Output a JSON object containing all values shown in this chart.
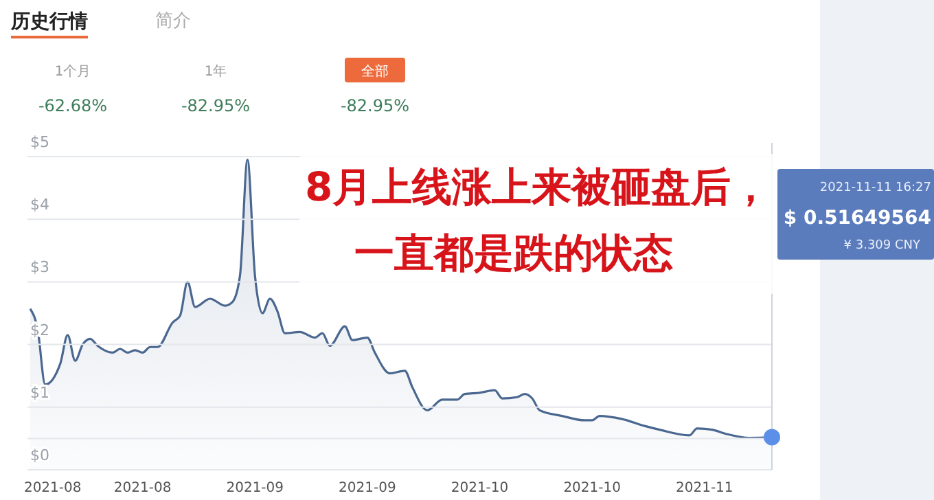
{
  "chart_data": {
    "type": "area",
    "color": "#4a6790",
    "x": [
      "2021-08-04",
      "2021-08-05",
      "2021-08-06",
      "2021-08-08",
      "2021-08-09",
      "2021-08-10",
      "2021-08-11",
      "2021-08-12",
      "2021-08-13",
      "2021-08-15",
      "2021-08-16",
      "2021-08-17",
      "2021-08-18",
      "2021-08-19",
      "2021-08-20",
      "2021-08-21",
      "2021-08-23",
      "2021-08-24",
      "2021-08-25",
      "2021-08-26",
      "2021-08-28",
      "2021-08-30",
      "2021-08-31",
      "2021-09-01",
      "2021-09-02",
      "2021-09-03",
      "2021-09-04",
      "2021-09-05",
      "2021-09-06",
      "2021-09-07",
      "2021-09-09",
      "2021-09-11",
      "2021-09-12",
      "2021-09-13",
      "2021-09-15",
      "2021-09-16",
      "2021-09-18",
      "2021-09-19",
      "2021-09-21",
      "2021-09-23",
      "2021-09-24",
      "2021-09-26",
      "2021-09-28",
      "2021-09-30",
      "2021-10-01",
      "2021-10-03",
      "2021-10-05",
      "2021-10-06",
      "2021-10-08",
      "2021-10-09",
      "2021-10-10",
      "2021-10-11",
      "2021-10-14",
      "2021-10-17",
      "2021-10-18",
      "2021-10-19",
      "2021-10-22",
      "2021-10-25",
      "2021-10-27",
      "2021-10-31",
      "2021-11-01",
      "2021-11-03",
      "2021-11-05",
      "2021-11-08",
      "2021-11-11"
    ],
    "values": [
      2.57,
      2.24,
      1.36,
      1.69,
      2.15,
      1.74,
      2.0,
      2.09,
      1.98,
      1.87,
      1.93,
      1.87,
      1.91,
      1.87,
      1.96,
      1.96,
      2.35,
      2.46,
      3.0,
      2.6,
      2.73,
      2.62,
      2.68,
      3.1,
      4.95,
      3.1,
      2.5,
      2.73,
      2.53,
      2.18,
      2.2,
      2.11,
      2.18,
      1.98,
      2.29,
      2.07,
      2.11,
      1.87,
      1.54,
      1.58,
      1.32,
      0.95,
      1.12,
      1.12,
      1.21,
      1.23,
      1.27,
      1.14,
      1.16,
      1.21,
      1.14,
      0.95,
      0.86,
      0.79,
      0.79,
      0.86,
      0.81,
      0.7,
      0.64,
      0.55,
      0.66,
      0.64,
      0.57,
      0.51,
      0.52
    ],
    "xlim": [
      "2021-08-04",
      "2021-11-11"
    ],
    "xticks": [
      {
        "value": "2021-08-07",
        "label": "2021-08"
      },
      {
        "value": "2021-08-19",
        "label": "2021-08"
      },
      {
        "value": "2021-09-03",
        "label": "2021-09"
      },
      {
        "value": "2021-09-18",
        "label": "2021-09"
      },
      {
        "value": "2021-10-03",
        "label": "2021-10"
      },
      {
        "value": "2021-10-18",
        "label": "2021-10"
      },
      {
        "value": "2021-11-02",
        "label": "2021-11"
      }
    ],
    "ylim": [
      0,
      5
    ],
    "yticks": [
      {
        "value": 0,
        "label": "$0"
      },
      {
        "value": 0.5,
        "label": null
      },
      {
        "value": 1,
        "label": "$1"
      },
      {
        "value": 2,
        "label": "$2"
      },
      {
        "value": 3,
        "label": "$3"
      },
      {
        "value": 4,
        "label": "$4"
      },
      {
        "value": 5,
        "label": "$5"
      }
    ],
    "grid": "y",
    "marker": "none",
    "line_style": "solid",
    "ref_lines": [
      {
        "axis": "x",
        "value": "2021-11-11",
        "label": null,
        "color": "#cfd4dc"
      }
    ],
    "annotations": [
      "历史行情",
      "简介",
      "1个月",
      "-62.68%",
      "1年",
      "-82.95%",
      "全部",
      "-82.95%",
      "8月上线涨上来被砸盘后，",
      "一直都是跌的状态",
      "2021-11-11 16:27\n$ 0.51649564\n¥ 3.309 CNY"
    ]
  }
}
